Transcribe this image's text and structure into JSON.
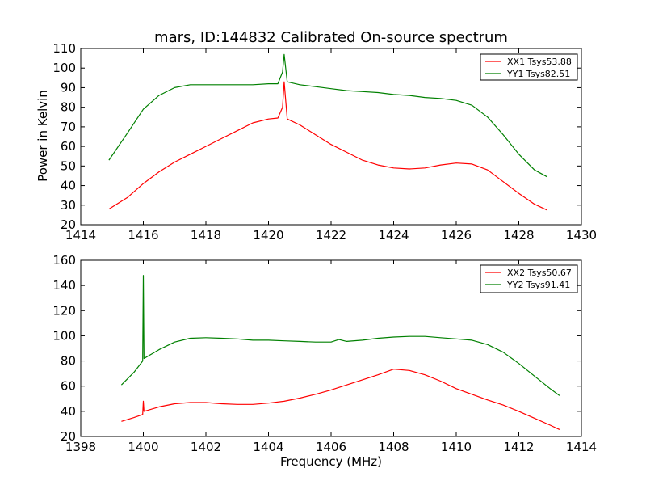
{
  "chart_data": [
    {
      "type": "line",
      "title": "mars, ID:144832 Calibrated On-source spectrum",
      "xlabel": "",
      "ylabel": "Power in Kelvin",
      "xlim": [
        1414,
        1430
      ],
      "ylim": [
        20,
        110
      ],
      "xticks": [
        "1414",
        "1416",
        "1418",
        "1420",
        "1422",
        "1424",
        "1426",
        "1428",
        "1430"
      ],
      "yticks": [
        "20",
        "30",
        "40",
        "50",
        "60",
        "70",
        "80",
        "90",
        "100",
        "110"
      ],
      "legend_position": "top-right",
      "grid": false,
      "series": [
        {
          "name": "XX1 Tsys53.88",
          "color": "#ff0000",
          "x": [
            1414.9,
            1415.5,
            1416.0,
            1416.5,
            1417.0,
            1417.5,
            1418.0,
            1418.5,
            1419.0,
            1419.5,
            1420.0,
            1420.3,
            1420.45,
            1420.5,
            1420.6,
            1421.0,
            1421.5,
            1422.0,
            1422.5,
            1423.0,
            1423.5,
            1424.0,
            1424.5,
            1425.0,
            1425.5,
            1426.0,
            1426.5,
            1427.0,
            1427.5,
            1428.0,
            1428.5,
            1428.9
          ],
          "y": [
            28,
            34,
            41,
            47,
            52,
            56,
            60,
            64,
            68,
            72,
            74,
            74.5,
            80,
            93,
            74,
            71,
            66,
            61,
            57,
            53,
            50.5,
            49,
            48.5,
            49,
            50.5,
            51.5,
            51,
            48,
            42,
            36,
            30.5,
            27.5
          ]
        },
        {
          "name": "YY1 Tsys82.51",
          "color": "#008000",
          "x": [
            1414.9,
            1415.5,
            1416.0,
            1416.5,
            1417.0,
            1417.5,
            1418.0,
            1418.5,
            1419.0,
            1419.5,
            1420.0,
            1420.3,
            1420.45,
            1420.5,
            1420.6,
            1421.0,
            1421.5,
            1422.0,
            1422.5,
            1423.0,
            1423.5,
            1424.0,
            1424.5,
            1425.0,
            1425.5,
            1426.0,
            1426.5,
            1427.0,
            1427.5,
            1428.0,
            1428.5,
            1428.9
          ],
          "y": [
            53,
            67,
            79,
            86,
            90,
            91.5,
            91.5,
            91.5,
            91.5,
            91.5,
            92,
            92,
            98,
            107,
            93,
            91.5,
            90.5,
            89.5,
            88.5,
            88,
            87.5,
            86.5,
            86,
            85,
            84.5,
            83.5,
            81,
            75,
            66,
            56,
            48,
            44.5
          ]
        }
      ]
    },
    {
      "type": "line",
      "title": "",
      "xlabel": "Frequency (MHz)",
      "ylabel": "",
      "xlim": [
        1398,
        1414
      ],
      "ylim": [
        20,
        160
      ],
      "xticks": [
        "1398",
        "1400",
        "1402",
        "1404",
        "1406",
        "1408",
        "1410",
        "1412",
        "1414"
      ],
      "yticks": [
        "20",
        "40",
        "60",
        "80",
        "100",
        "120",
        "140",
        "160"
      ],
      "legend_position": "top-right",
      "grid": false,
      "series": [
        {
          "name": "XX2 Tsys50.67",
          "color": "#ff0000",
          "x": [
            1399.3,
            1399.7,
            1399.98,
            1400.0,
            1400.02,
            1400.5,
            1401.0,
            1401.5,
            1402.0,
            1402.5,
            1403.0,
            1403.5,
            1404.0,
            1404.5,
            1405.0,
            1405.5,
            1406.0,
            1406.5,
            1407.0,
            1407.5,
            1408.0,
            1408.5,
            1409.0,
            1409.5,
            1410.0,
            1410.5,
            1411.0,
            1411.5,
            1412.0,
            1412.5,
            1413.0,
            1413.3
          ],
          "y": [
            32,
            35,
            37.5,
            48,
            40,
            43.5,
            46,
            47,
            47,
            46,
            45.5,
            45.5,
            46.5,
            48,
            50.5,
            53.5,
            57,
            61,
            65,
            69,
            73.5,
            72.5,
            69,
            64,
            58,
            53.5,
            49,
            45,
            40,
            34.5,
            29,
            25.5
          ]
        },
        {
          "name": "YY2 Tsys91.41",
          "color": "#008000",
          "x": [
            1399.3,
            1399.7,
            1399.98,
            1400.0,
            1400.02,
            1400.5,
            1401.0,
            1401.5,
            1402.0,
            1402.5,
            1403.0,
            1403.5,
            1404.0,
            1404.5,
            1405.0,
            1405.5,
            1406.0,
            1406.25,
            1406.5,
            1407.0,
            1407.5,
            1408.0,
            1408.5,
            1409.0,
            1409.5,
            1410.0,
            1410.5,
            1411.0,
            1411.5,
            1412.0,
            1412.5,
            1413.0,
            1413.3
          ],
          "y": [
            61,
            71,
            80,
            148,
            82,
            89,
            95,
            98,
            98.5,
            98,
            97.5,
            96.5,
            96.5,
            96,
            95.5,
            95,
            95,
            97,
            95.5,
            96.5,
            98,
            99,
            99.5,
            99.5,
            98.5,
            97.5,
            96.5,
            93,
            87,
            78,
            68,
            58,
            52.5
          ]
        }
      ]
    }
  ]
}
